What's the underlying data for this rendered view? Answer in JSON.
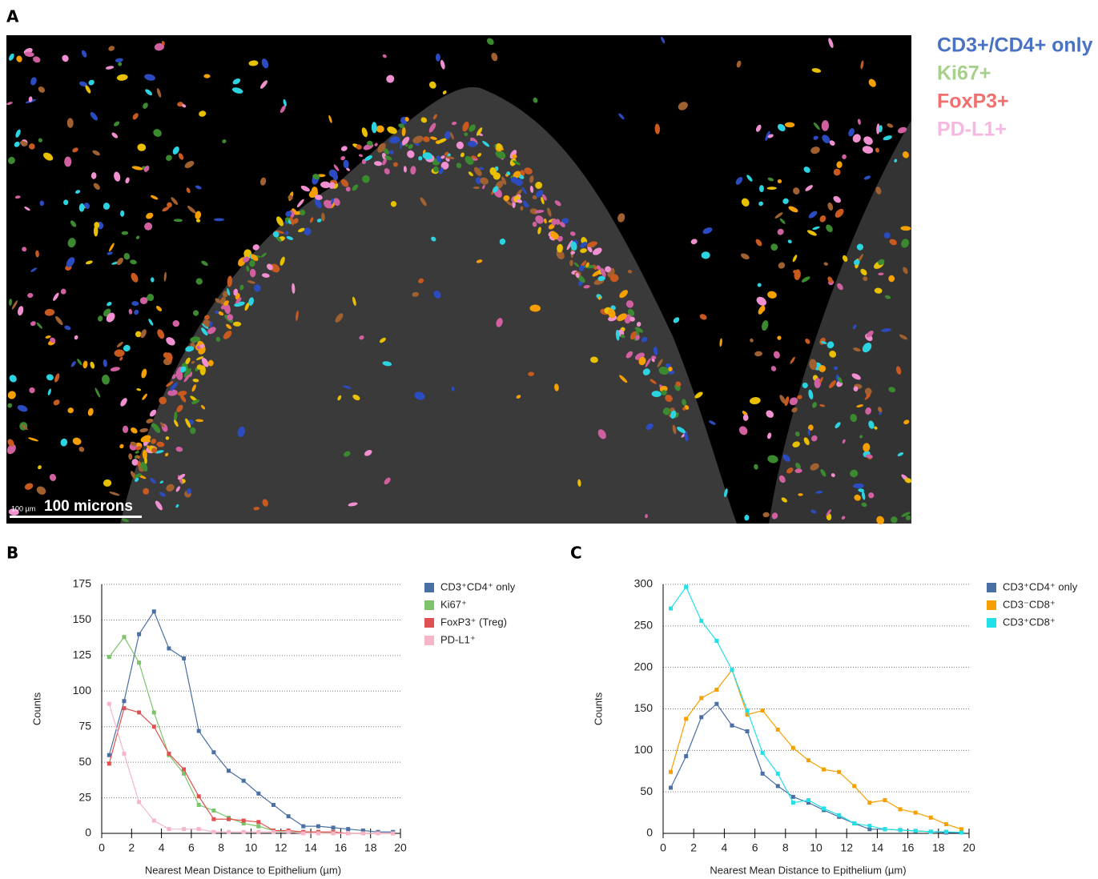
{
  "panel_a": {
    "label": "A",
    "scale_bar": "100 microns",
    "scale_small": "100 µm",
    "legend": [
      {
        "name": "CD3+/CD4+ only",
        "color": "#4a72c4"
      },
      {
        "name": "Ki67+",
        "color": "#a8d08d"
      },
      {
        "name": "FoxP3+",
        "color": "#f07070"
      },
      {
        "name": "PD-L1+",
        "color": "#f5b8e0"
      }
    ]
  },
  "chart_data": [
    {
      "type": "line",
      "label": "B",
      "xlabel": "Nearest Mean Distance to Epithelium (µm)",
      "ylabel": "Counts",
      "x": [
        0.5,
        1.5,
        2.5,
        3.5,
        4.5,
        5.5,
        6.5,
        7.5,
        8.5,
        9.5,
        10.5,
        11.5,
        12.5,
        13.5,
        14.5,
        15.5,
        16.5,
        17.5,
        18.5,
        19.5
      ],
      "xlim": [
        0,
        20
      ],
      "xticks": [
        0,
        2,
        4,
        6,
        8,
        10,
        12,
        14,
        16,
        18,
        20
      ],
      "ylim": [
        0,
        175
      ],
      "yticks": [
        0,
        25,
        50,
        75,
        100,
        125,
        150,
        175
      ],
      "grid": true,
      "series": [
        {
          "name": "CD3⁺CD4⁺ only",
          "color": "#4a6fa5",
          "values": [
            55,
            93,
            140,
            156,
            130,
            123,
            72,
            57,
            44,
            37,
            28,
            20,
            12,
            5,
            5,
            4,
            3,
            2,
            1,
            1
          ]
        },
        {
          "name": "Ki67⁺",
          "color": "#7dc36b",
          "values": [
            124,
            138,
            120,
            85,
            55,
            42,
            20,
            16,
            11,
            7,
            5,
            2,
            1,
            1,
            1,
            0,
            0,
            0,
            0,
            0
          ]
        },
        {
          "name": "FoxP3⁺ (Treg)",
          "color": "#e05050",
          "values": [
            49,
            88,
            85,
            75,
            56,
            45,
            26,
            10,
            10,
            9,
            8,
            2,
            2,
            1,
            1,
            1,
            0,
            0,
            0,
            0
          ]
        },
        {
          "name": "PD-L1⁺",
          "color": "#f7b6c8",
          "values": [
            91,
            56,
            22,
            9,
            3,
            3,
            3,
            1,
            1,
            1,
            1,
            1,
            1,
            0,
            0,
            0,
            0,
            0,
            0,
            0
          ]
        }
      ]
    },
    {
      "type": "line",
      "label": "C",
      "xlabel": "Nearest Mean Distance to Epithelium (µm)",
      "ylabel": "Counts",
      "x": [
        0.5,
        1.5,
        2.5,
        3.5,
        4.5,
        5.5,
        6.5,
        7.5,
        8.5,
        9.5,
        10.5,
        11.5,
        12.5,
        13.5,
        14.5,
        15.5,
        16.5,
        17.5,
        18.5,
        19.5
      ],
      "xlim": [
        0,
        20
      ],
      "xticks": [
        0,
        2,
        4,
        6,
        8,
        10,
        12,
        14,
        16,
        18,
        20
      ],
      "ylim": [
        0,
        300
      ],
      "yticks": [
        0,
        50,
        100,
        150,
        200,
        250,
        300
      ],
      "grid": true,
      "series": [
        {
          "name": "CD3⁺CD4⁺ only",
          "color": "#4a6fa5",
          "values": [
            55,
            93,
            140,
            156,
            130,
            123,
            72,
            57,
            44,
            37,
            28,
            20,
            12,
            5,
            5,
            4,
            3,
            2,
            1,
            1
          ]
        },
        {
          "name": "CD3⁻CD8⁺",
          "color": "#f5a000",
          "values": [
            74,
            138,
            163,
            173,
            197,
            143,
            148,
            125,
            103,
            88,
            77,
            74,
            57,
            37,
            40,
            29,
            25,
            19,
            11,
            5
          ]
        },
        {
          "name": "CD3⁺CD8⁺",
          "color": "#22e0e8",
          "values": [
            271,
            297,
            256,
            232,
            197,
            148,
            97,
            72,
            37,
            40,
            30,
            22,
            12,
            9,
            5,
            4,
            3,
            2,
            2,
            1
          ]
        }
      ]
    }
  ]
}
